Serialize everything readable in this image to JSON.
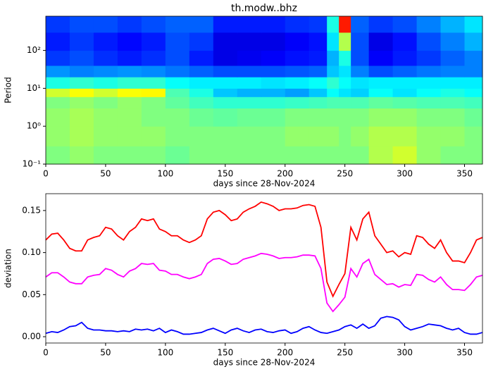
{
  "chart_data": [
    {
      "type": "heatmap",
      "title": "th.modw..bhz",
      "xlabel": "days since 28-Nov-2024",
      "ylabel": "Period",
      "colormap": "jet",
      "log_y": true,
      "xlim": [
        0,
        365
      ],
      "ylim": [
        0.1,
        800
      ],
      "xticks": [
        0,
        50,
        100,
        150,
        200,
        250,
        300,
        350
      ],
      "yticks": [
        {
          "value": 0.1,
          "label": "10⁻¹"
        },
        {
          "value": 1,
          "label": "10⁰"
        },
        {
          "value": 10,
          "label": "10¹"
        },
        {
          "value": 100,
          "label": "10²"
        }
      ],
      "x_edges": [
        0,
        20,
        40,
        60,
        80,
        100,
        120,
        140,
        160,
        180,
        200,
        220,
        235,
        245,
        255,
        270,
        290,
        310,
        330,
        350,
        365
      ],
      "y_edges": [
        0.1,
        0.3,
        1,
        3,
        6,
        10,
        20,
        40,
        100,
        300,
        800
      ],
      "z": [
        [
          0.5,
          0.52,
          0.5,
          0.5,
          0.5,
          0.48,
          0.5,
          0.5,
          0.5,
          0.5,
          0.5,
          0.5,
          0.5,
          0.5,
          0.5,
          0.55,
          0.58,
          0.52,
          0.5,
          0.5
        ],
        [
          0.52,
          0.54,
          0.52,
          0.52,
          0.52,
          0.5,
          0.5,
          0.5,
          0.5,
          0.5,
          0.52,
          0.52,
          0.52,
          0.5,
          0.52,
          0.55,
          0.55,
          0.52,
          0.52,
          0.5
        ],
        [
          0.52,
          0.54,
          0.52,
          0.52,
          0.5,
          0.5,
          0.48,
          0.47,
          0.48,
          0.48,
          0.5,
          0.5,
          0.5,
          0.5,
          0.5,
          0.52,
          0.52,
          0.5,
          0.5,
          0.48
        ],
        [
          0.5,
          0.52,
          0.5,
          0.52,
          0.5,
          0.47,
          0.44,
          0.42,
          0.42,
          0.42,
          0.43,
          0.44,
          0.45,
          0.45,
          0.45,
          0.47,
          0.46,
          0.45,
          0.45,
          0.44
        ],
        [
          0.58,
          0.62,
          0.58,
          0.62,
          0.63,
          0.45,
          0.4,
          0.32,
          0.3,
          0.3,
          0.28,
          0.32,
          0.38,
          0.35,
          0.33,
          0.38,
          0.35,
          0.38,
          0.4,
          0.38
        ],
        [
          0.4,
          0.42,
          0.4,
          0.42,
          0.42,
          0.38,
          0.36,
          0.36,
          0.36,
          0.35,
          0.36,
          0.38,
          0.42,
          0.38,
          0.35,
          0.36,
          0.36,
          0.36,
          0.36,
          0.36
        ],
        [
          0.27,
          0.25,
          0.26,
          0.27,
          0.26,
          0.24,
          0.22,
          0.2,
          0.2,
          0.2,
          0.21,
          0.22,
          0.32,
          0.35,
          0.25,
          0.2,
          0.22,
          0.24,
          0.25,
          0.25
        ],
        [
          0.18,
          0.2,
          0.17,
          0.15,
          0.17,
          0.2,
          0.15,
          0.1,
          0.11,
          0.12,
          0.14,
          0.15,
          0.3,
          0.4,
          0.2,
          0.12,
          0.15,
          0.18,
          0.22,
          0.25
        ],
        [
          0.15,
          0.18,
          0.15,
          0.13,
          0.15,
          0.2,
          0.18,
          0.1,
          0.1,
          0.1,
          0.12,
          0.14,
          0.35,
          0.55,
          0.2,
          0.1,
          0.14,
          0.2,
          0.25,
          0.3
        ],
        [
          0.18,
          0.2,
          0.2,
          0.18,
          0.2,
          0.22,
          0.22,
          0.15,
          0.15,
          0.15,
          0.17,
          0.18,
          0.4,
          0.85,
          0.22,
          0.18,
          0.2,
          0.25,
          0.3,
          0.35
        ]
      ]
    },
    {
      "type": "line",
      "xlabel": "days since 28-Nov-2024",
      "ylabel": "deviation",
      "xlim": [
        0,
        365
      ],
      "ylim": [
        -0.0075,
        0.17
      ],
      "xticks": [
        0,
        50,
        100,
        150,
        200,
        250,
        300,
        350
      ],
      "yticks": [
        {
          "value": 0,
          "label": "0.00"
        },
        0.05,
        {
          "value": 0.1,
          "label": "0.10"
        },
        0.15
      ],
      "x": [
        0,
        5,
        10,
        15,
        20,
        25,
        30,
        35,
        40,
        45,
        50,
        55,
        60,
        65,
        70,
        75,
        80,
        85,
        90,
        95,
        100,
        105,
        110,
        115,
        120,
        125,
        130,
        135,
        140,
        145,
        150,
        155,
        160,
        165,
        170,
        175,
        180,
        185,
        190,
        195,
        200,
        205,
        210,
        215,
        220,
        225,
        230,
        235,
        240,
        245,
        250,
        255,
        260,
        265,
        270,
        275,
        280,
        285,
        290,
        295,
        300,
        305,
        310,
        315,
        320,
        325,
        330,
        335,
        340,
        345,
        350,
        355,
        360,
        365
      ],
      "series": [
        {
          "color": "#ff0000",
          "values": [
            0.115,
            0.122,
            0.123,
            0.115,
            0.105,
            0.102,
            0.102,
            0.115,
            0.118,
            0.12,
            0.13,
            0.128,
            0.12,
            0.115,
            0.125,
            0.13,
            0.14,
            0.138,
            0.14,
            0.128,
            0.125,
            0.12,
            0.12,
            0.115,
            0.112,
            0.115,
            0.12,
            0.14,
            0.148,
            0.15,
            0.145,
            0.138,
            0.14,
            0.148,
            0.152,
            0.155,
            0.16,
            0.158,
            0.155,
            0.15,
            0.152,
            0.152,
            0.153,
            0.156,
            0.157,
            0.155,
            0.13,
            0.065,
            0.048,
            0.062,
            0.075,
            0.13,
            0.115,
            0.14,
            0.148,
            0.12,
            0.11,
            0.1,
            0.102,
            0.095,
            0.1,
            0.098,
            0.12,
            0.118,
            0.11,
            0.105,
            0.115,
            0.1,
            0.09,
            0.09,
            0.088,
            0.1,
            0.115,
            0.118
          ]
        },
        {
          "color": "#ff00ff",
          "values": [
            0.071,
            0.076,
            0.076,
            0.071,
            0.065,
            0.063,
            0.063,
            0.071,
            0.073,
            0.074,
            0.081,
            0.079,
            0.074,
            0.071,
            0.078,
            0.081,
            0.087,
            0.086,
            0.087,
            0.079,
            0.078,
            0.074,
            0.074,
            0.071,
            0.069,
            0.071,
            0.074,
            0.087,
            0.092,
            0.093,
            0.09,
            0.086,
            0.087,
            0.092,
            0.094,
            0.096,
            0.099,
            0.098,
            0.096,
            0.093,
            0.094,
            0.094,
            0.095,
            0.097,
            0.097,
            0.096,
            0.081,
            0.04,
            0.03,
            0.038,
            0.047,
            0.081,
            0.071,
            0.087,
            0.092,
            0.074,
            0.068,
            0.062,
            0.063,
            0.059,
            0.062,
            0.061,
            0.074,
            0.073,
            0.068,
            0.065,
            0.071,
            0.062,
            0.056,
            0.056,
            0.055,
            0.062,
            0.071,
            0.073
          ]
        },
        {
          "color": "#0000ff",
          "values": [
            0.004,
            0.006,
            0.005,
            0.008,
            0.012,
            0.013,
            0.017,
            0.01,
            0.008,
            0.008,
            0.007,
            0.007,
            0.006,
            0.007,
            0.006,
            0.009,
            0.008,
            0.009,
            0.007,
            0.01,
            0.005,
            0.008,
            0.006,
            0.003,
            0.003,
            0.004,
            0.005,
            0.008,
            0.01,
            0.007,
            0.004,
            0.008,
            0.01,
            0.007,
            0.005,
            0.008,
            0.009,
            0.006,
            0.005,
            0.007,
            0.008,
            0.004,
            0.006,
            0.01,
            0.012,
            0.008,
            0.005,
            0.004,
            0.006,
            0.008,
            0.012,
            0.014,
            0.01,
            0.015,
            0.01,
            0.013,
            0.022,
            0.024,
            0.023,
            0.02,
            0.012,
            0.008,
            0.01,
            0.012,
            0.015,
            0.014,
            0.013,
            0.01,
            0.008,
            0.01,
            0.005,
            0.003,
            0.003,
            0.005
          ]
        }
      ]
    }
  ]
}
